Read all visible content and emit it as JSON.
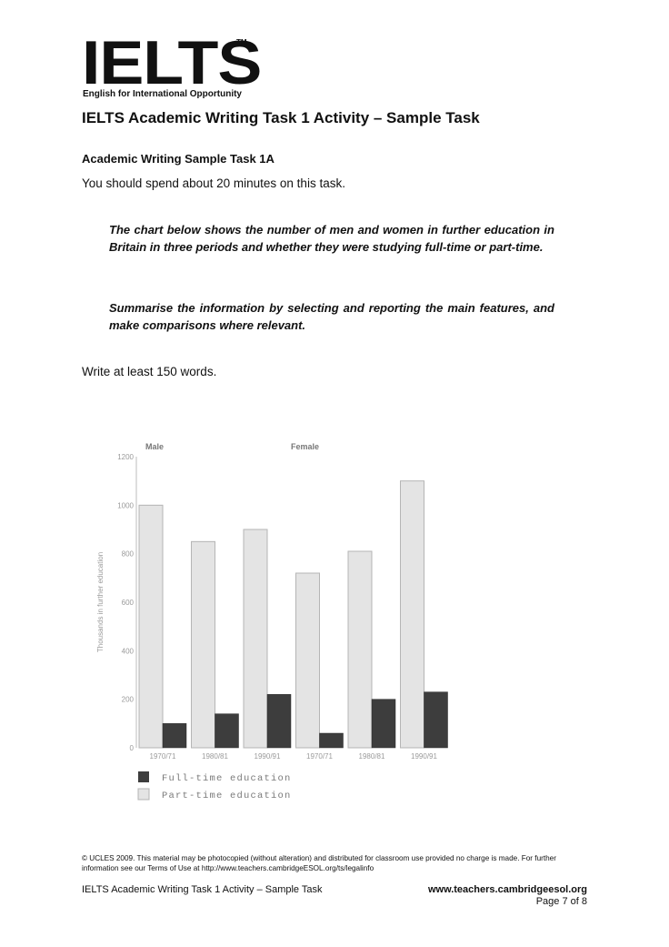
{
  "logo": {
    "word": "IELTS",
    "tm": "TM",
    "tagline": "English for International Opportunity"
  },
  "doc_title": "IELTS Academic Writing Task 1 Activity – Sample Task",
  "task_heading": "Academic Writing Sample Task 1A",
  "time_note": "You should spend about 20 minutes on this task.",
  "prompt_1": "The chart below shows the number of men and women in further education in Britain in three periods and whether they were studying full-time or part-time.",
  "prompt_2": "Summarise the information by selecting and reporting the main features, and make comparisons where relevant.",
  "word_count": "Write at least 150 words.",
  "chart_data": {
    "type": "bar",
    "title": "",
    "group_labels": [
      "Male",
      "Female"
    ],
    "categories": [
      "1970/71",
      "1980/81",
      "1990/91",
      "1970/71",
      "1980/81",
      "1990/91"
    ],
    "series": [
      {
        "name": "Full-time education",
        "values": [
          100,
          140,
          220,
          60,
          200,
          230
        ],
        "color": "#3d3d3d"
      },
      {
        "name": "Part-time education",
        "values": [
          1000,
          850,
          900,
          720,
          810,
          1100
        ],
        "color": "#e4e4e4"
      }
    ],
    "ylabel": "Thousands in further education",
    "xlabel": "",
    "ylim": [
      0,
      1200
    ],
    "yticks": [
      0,
      200,
      400,
      600,
      800,
      1000,
      1200
    ],
    "grid": false,
    "legend_position": "bottom-left"
  },
  "copyright": "© UCLES 2009. This material may be photocopied (without alteration) and distributed for classroom use provided no charge is made. For further information see our Terms of Use at http://www.teachers.cambridgeESOL.org/ts/legalinfo",
  "footer": {
    "left": "IELTS Academic Writing Task 1 Activity – Sample Task",
    "url": "www.teachers.cambridgeesol.org",
    "page": "Page 7 of 8"
  }
}
